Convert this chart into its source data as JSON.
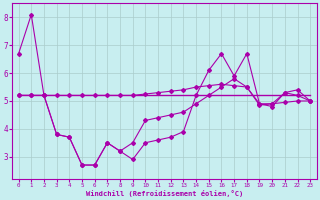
{
  "line1_x": [
    0,
    1,
    2,
    3,
    4,
    5,
    6,
    7,
    8,
    9,
    10,
    11,
    12,
    13,
    14,
    15,
    16,
    17,
    18,
    19,
    20,
    21,
    22,
    23
  ],
  "line1_y": [
    6.7,
    8.1,
    5.2,
    3.8,
    3.7,
    2.7,
    2.7,
    3.5,
    3.2,
    2.9,
    3.5,
    3.6,
    3.7,
    3.9,
    5.2,
    6.1,
    6.7,
    5.9,
    6.7,
    4.9,
    4.8,
    5.3,
    5.4,
    5.0
  ],
  "line2_x": [
    0,
    1,
    2,
    3,
    4,
    5,
    6,
    7,
    8,
    9,
    10,
    11,
    12,
    13,
    14,
    15,
    16,
    17,
    18,
    19,
    20,
    21,
    22,
    23
  ],
  "line2_y": [
    5.2,
    5.2,
    5.2,
    5.2,
    5.2,
    5.2,
    5.2,
    5.2,
    5.2,
    5.2,
    5.2,
    5.2,
    5.2,
    5.2,
    5.2,
    5.2,
    5.2,
    5.2,
    5.2,
    5.2,
    5.2,
    5.2,
    5.2,
    5.2
  ],
  "line3_x": [
    0,
    1,
    2,
    3,
    4,
    5,
    6,
    7,
    8,
    9,
    10,
    11,
    12,
    13,
    14,
    15,
    16,
    17,
    18,
    19,
    20,
    21,
    22,
    23
  ],
  "line3_y": [
    5.2,
    5.2,
    5.2,
    5.2,
    5.2,
    5.2,
    5.2,
    5.2,
    5.2,
    5.2,
    5.25,
    5.3,
    5.35,
    5.4,
    5.5,
    5.55,
    5.6,
    5.55,
    5.5,
    4.9,
    4.9,
    4.95,
    5.0,
    5.0
  ],
  "line4_x": [
    0,
    1,
    2,
    3,
    4,
    5,
    6,
    7,
    8,
    9,
    10,
    11,
    12,
    13,
    14,
    15,
    16,
    17,
    18,
    19,
    20,
    21,
    22,
    23
  ],
  "line4_y": [
    5.2,
    5.2,
    5.2,
    3.8,
    3.7,
    2.7,
    2.7,
    3.5,
    3.2,
    3.5,
    4.3,
    4.4,
    4.5,
    4.6,
    4.9,
    5.2,
    5.5,
    5.8,
    5.5,
    4.85,
    4.9,
    5.3,
    5.2,
    5.0
  ],
  "line_color": "#aa00aa",
  "bg_color": "#c8eef0",
  "grid_color": "#aacccc",
  "xlabel": "Windchill (Refroidissement éolien,°C)",
  "xlim": [
    -0.5,
    23.5
  ],
  "ylim": [
    2.2,
    8.5
  ],
  "yticks": [
    3,
    4,
    5,
    6,
    7,
    8
  ],
  "xticks": [
    0,
    1,
    2,
    3,
    4,
    5,
    6,
    7,
    8,
    9,
    10,
    11,
    12,
    13,
    14,
    15,
    16,
    17,
    18,
    19,
    20,
    21,
    22,
    23
  ]
}
